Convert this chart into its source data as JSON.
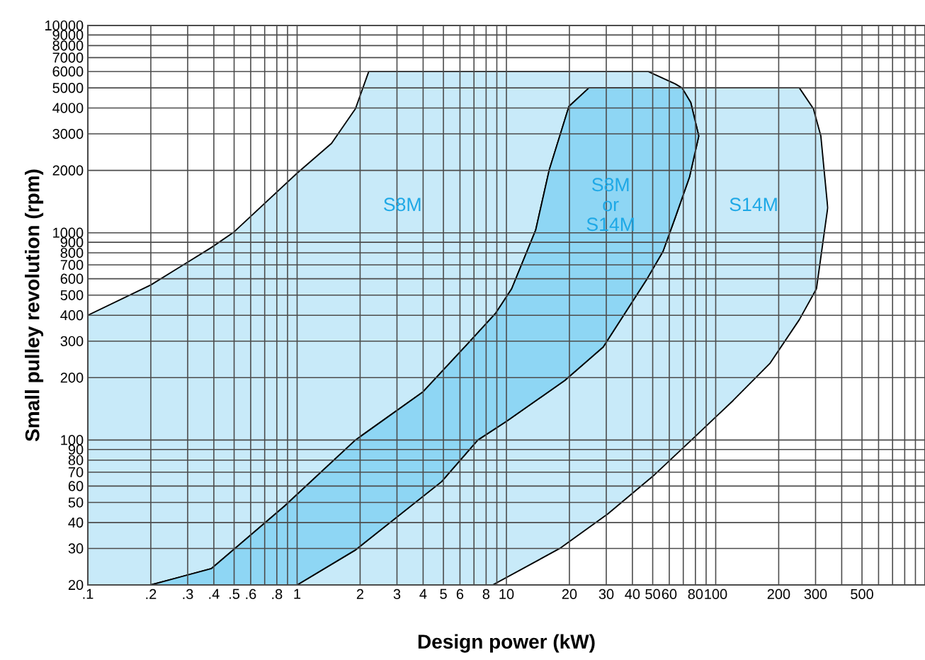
{
  "chart_data": {
    "type": "area",
    "xlabel": "Design power (kW)",
    "ylabel": "Small pulley revolution (rpm)",
    "log": "xy",
    "grid": true,
    "xlim": [
      0.1,
      1000
    ],
    "ylim": [
      20,
      10000
    ],
    "xticks": [
      {
        "value": 0.1,
        "label": ".1"
      },
      {
        "value": 0.2,
        "label": ".2"
      },
      {
        "value": 0.3,
        "label": ".3"
      },
      {
        "value": 0.4,
        "label": ".4"
      },
      {
        "value": 0.5,
        "label": ".5"
      },
      {
        "value": 0.6,
        "label": ".6"
      },
      {
        "value": 0.7,
        "label": null
      },
      {
        "value": 0.8,
        "label": ".8"
      },
      {
        "value": 0.9,
        "label": null
      },
      1,
      2,
      3,
      4,
      5,
      6,
      {
        "value": 7,
        "label": null
      },
      8,
      {
        "value": 9,
        "label": null
      },
      10,
      20,
      30,
      40,
      50,
      60,
      {
        "value": 70,
        "label": null
      },
      80,
      {
        "value": 90,
        "label": null
      },
      100,
      200,
      300,
      {
        "value": 400,
        "label": null
      },
      500,
      {
        "value": 600,
        "label": null
      },
      {
        "value": 700,
        "label": null
      },
      {
        "value": 800,
        "label": null
      },
      {
        "value": 900,
        "label": null
      }
    ],
    "yticks": [
      20,
      30,
      40,
      50,
      60,
      70,
      80,
      90,
      100,
      200,
      300,
      400,
      500,
      600,
      700,
      800,
      900,
      1000,
      2000,
      3000,
      4000,
      5000,
      6000,
      7000,
      8000,
      9000,
      10000
    ],
    "series": [
      {
        "name": "S8M",
        "color": "#c8eaf9",
        "x": [
          0.1,
          0.2,
          0.39,
          0.5,
          1.0,
          1.46,
          1.9,
          2.2,
          47.5,
          64,
          69,
          24.8,
          19.9,
          16,
          13.8,
          10.6,
          8.9,
          6.5,
          4.0,
          1.9,
          0.87,
          0.39,
          0.2,
          0.1
        ],
        "values": [
          400,
          560,
          850,
          1010,
          1940,
          2700,
          3970,
          6000,
          6000,
          5230,
          5000,
          5000,
          4070,
          2000,
          1030,
          537,
          410,
          290,
          171,
          100,
          48,
          24,
          20,
          20
        ]
      },
      {
        "name": "S14M",
        "color": "#c8eaf9",
        "x": [
          69,
          251,
          293,
          318,
          343,
          303,
          251,
          182,
          121,
          79,
          51,
          30.5,
          18,
          8.6,
          1.0,
          1.9,
          4.9,
          7.3,
          10,
          19,
          29,
          47,
          56,
          64,
          75,
          83,
          76
        ],
        "values": [
          5000,
          5000,
          3970,
          2930,
          1320,
          537,
          381,
          235,
          155,
          103,
          68,
          44,
          30,
          20,
          20,
          29.5,
          63,
          100,
          123,
          194,
          281,
          600,
          813,
          1180,
          1860,
          2930,
          4250
        ]
      },
      {
        "name": "S8M or S14M",
        "color": "#8ed6f4",
        "x": [
          0.2,
          0.39,
          0.87,
          1.9,
          4.0,
          6.5,
          8.9,
          10.6,
          13.8,
          16,
          19.9,
          24.8,
          69,
          76,
          83,
          75,
          64,
          56,
          47,
          29,
          19,
          10,
          7.3,
          4.9,
          1.9,
          1.0
        ],
        "values": [
          20,
          24,
          48,
          100,
          171,
          290,
          410,
          537,
          1030,
          2000,
          4070,
          5000,
          5000,
          4250,
          2930,
          1860,
          1180,
          813,
          600,
          281,
          194,
          123,
          100,
          63,
          29.5,
          20
        ]
      }
    ]
  }
}
